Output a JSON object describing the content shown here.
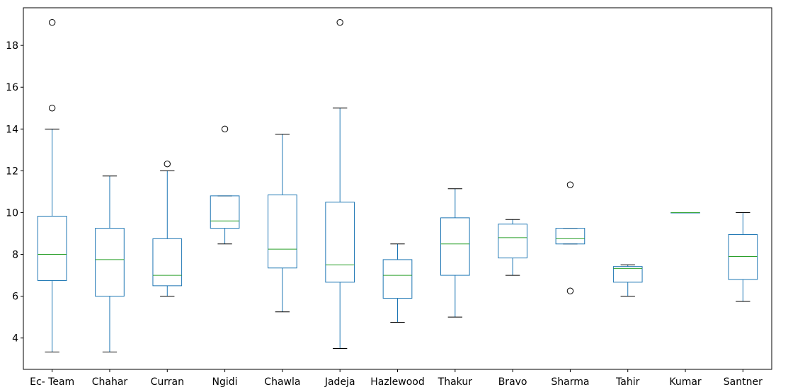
{
  "chart_data": {
    "type": "boxplot",
    "title": "",
    "xlabel": "",
    "ylabel": "",
    "ylim": [
      2.5,
      19.8
    ],
    "yticks": [
      4,
      6,
      8,
      10,
      12,
      14,
      16,
      18
    ],
    "grid": false,
    "colors": {
      "box": "#1f77b4",
      "median": "#2ca02c",
      "whisker_cap": "#000000",
      "outlier": "#000000"
    },
    "categories": [
      "Ec- Team",
      "Chahar",
      "Curran",
      "Ngidi",
      "Chawla",
      "Jadeja",
      "Hazlewood",
      "Thakur",
      "Bravo",
      "Sharma",
      "Tahir",
      "Kumar",
      "Santner"
    ],
    "boxes": [
      {
        "whislo": 3.33,
        "q1": 6.75,
        "med": 8.0,
        "q3": 9.83,
        "whishi": 14.0,
        "fliers": [
          15.0,
          19.1
        ]
      },
      {
        "whislo": 3.33,
        "q1": 6.0,
        "med": 7.75,
        "q3": 9.25,
        "whishi": 11.75,
        "fliers": []
      },
      {
        "whislo": 6.0,
        "q1": 6.5,
        "med": 7.0,
        "q3": 8.75,
        "whishi": 12.0,
        "fliers": [
          12.33
        ]
      },
      {
        "whislo": 8.5,
        "q1": 9.25,
        "med": 9.6,
        "q3": 10.8,
        "whishi": 10.8,
        "fliers": [
          14.0
        ]
      },
      {
        "whislo": 5.25,
        "q1": 7.35,
        "med": 8.25,
        "q3": 10.85,
        "whishi": 13.75,
        "fliers": []
      },
      {
        "whislo": 3.5,
        "q1": 6.67,
        "med": 7.5,
        "q3": 10.5,
        "whishi": 15.0,
        "fliers": [
          19.1
        ]
      },
      {
        "whislo": 4.75,
        "q1": 5.9,
        "med": 7.0,
        "q3": 7.75,
        "whishi": 8.5,
        "fliers": []
      },
      {
        "whislo": 5.0,
        "q1": 7.0,
        "med": 8.5,
        "q3": 9.75,
        "whishi": 11.14,
        "fliers": []
      },
      {
        "whislo": 7.0,
        "q1": 7.83,
        "med": 8.8,
        "q3": 9.45,
        "whishi": 9.67,
        "fliers": []
      },
      {
        "whislo": 8.5,
        "q1": 8.5,
        "med": 8.75,
        "q3": 9.25,
        "whishi": 9.25,
        "fliers": [
          11.33,
          6.25
        ]
      },
      {
        "whislo": 6.0,
        "q1": 6.67,
        "med": 7.33,
        "q3": 7.42,
        "whishi": 7.5,
        "fliers": []
      },
      {
        "whislo": 10.0,
        "q1": 10.0,
        "med": 10.0,
        "q3": 10.0,
        "whishi": 10.0,
        "fliers": []
      },
      {
        "whislo": 5.75,
        "q1": 6.8,
        "med": 7.9,
        "q3": 8.95,
        "whishi": 10.0,
        "fliers": []
      }
    ]
  }
}
